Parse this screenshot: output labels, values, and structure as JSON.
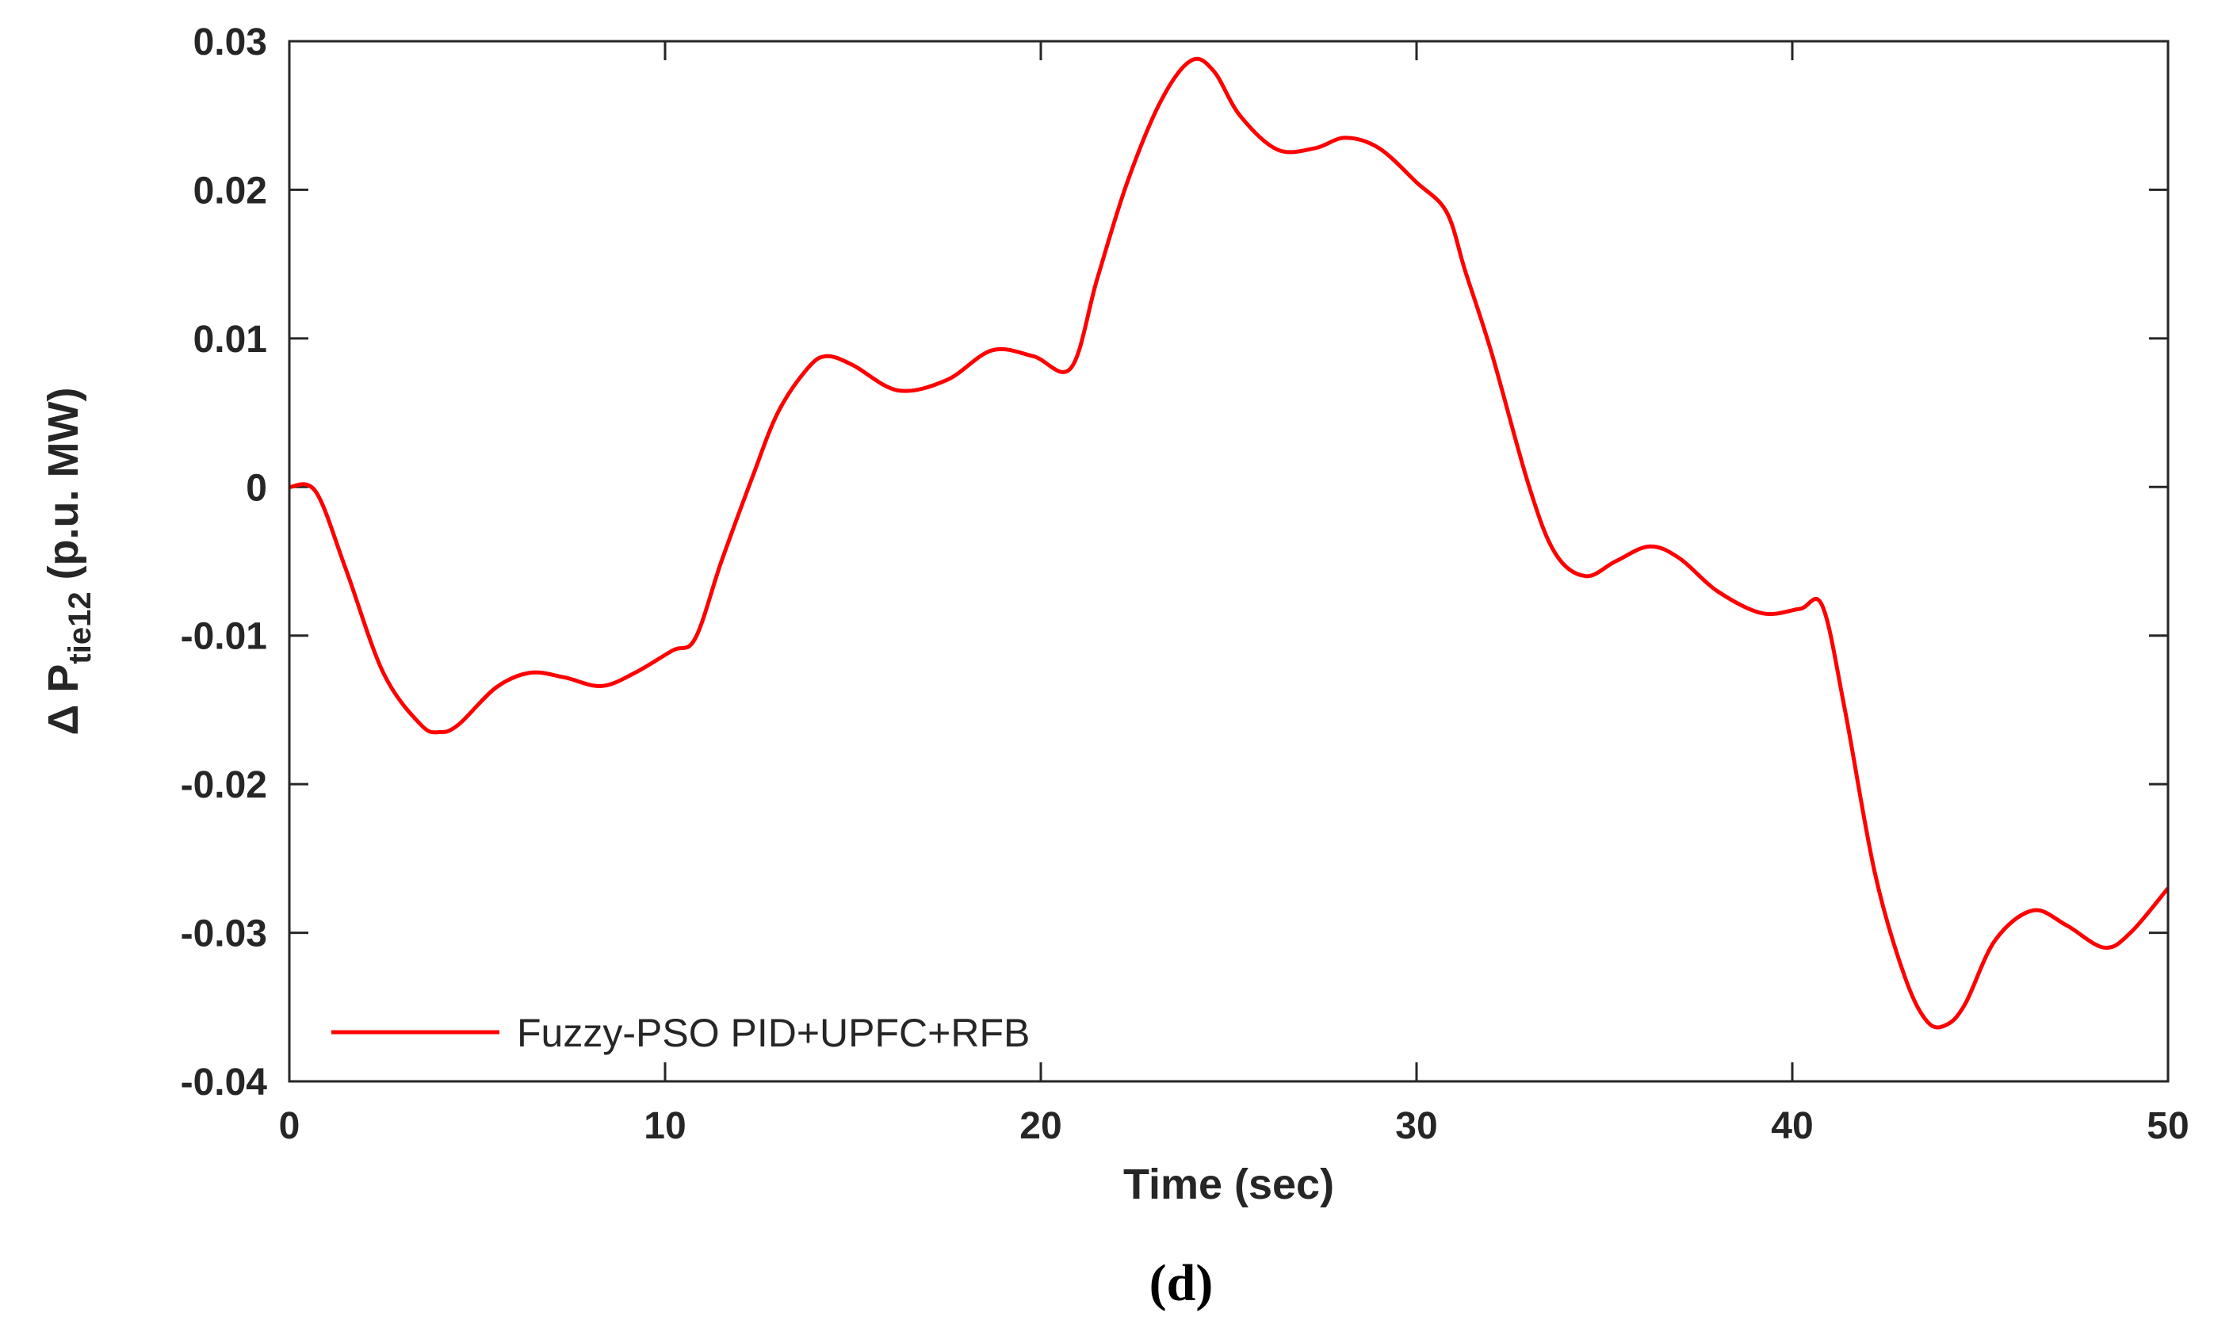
{
  "chart_data": {
    "type": "line",
    "xlabel": "Time (sec)",
    "ylabel": {
      "prefix": "Δ P",
      "subscript": "tie12",
      "suffix": " (p.u. MW)"
    },
    "xlim": [
      0,
      50
    ],
    "ylim": [
      -0.04,
      0.03
    ],
    "xticks": [
      0,
      10,
      20,
      30,
      40,
      50
    ],
    "yticks": [
      -0.04,
      -0.03,
      -0.02,
      -0.01,
      0,
      0.01,
      0.02,
      0.03
    ],
    "xtick_labels": [
      "0",
      "10",
      "20",
      "30",
      "40",
      "50"
    ],
    "ytick_labels": [
      "-0.04",
      "-0.03",
      "-0.02",
      "-0.01",
      "0",
      "0.01",
      "0.02",
      "0.03"
    ],
    "grid": false,
    "legend_position": "bottom-left",
    "series": [
      {
        "name": "Fuzzy-PSO PID+UPFC+RFB",
        "color": "#ff0000",
        "x": [
          0,
          0.7,
          1.5,
          2.5,
          3.5,
          4.0,
          4.5,
          5.5,
          6.4,
          7.3,
          8.3,
          9.2,
          10.2,
          10.8,
          11.5,
          12.3,
          13.0,
          13.8,
          14.3,
          15.0,
          16.2,
          17.5,
          18.7,
          19.8,
          20.8,
          21.5,
          22.3,
          23.2,
          24.0,
          24.6,
          25.3,
          26.3,
          27.3,
          28.1,
          29.0,
          30.0,
          30.8,
          31.3,
          32.0,
          33.0,
          33.7,
          34.5,
          35.3,
          36.2,
          37.0,
          38.0,
          39.2,
          40.2,
          40.8,
          41.4,
          42.2,
          43.0,
          43.6,
          44.1,
          44.6,
          45.4,
          46.4,
          47.3,
          48.3,
          49.0,
          50.0
        ],
        "y": [
          0,
          -0.0003,
          -0.0055,
          -0.0125,
          -0.016,
          -0.0165,
          -0.016,
          -0.0135,
          -0.0125,
          -0.0128,
          -0.0134,
          -0.0125,
          -0.011,
          -0.0102,
          -0.005,
          0.0005,
          0.005,
          0.008,
          0.0088,
          0.0082,
          0.0065,
          0.0072,
          0.0092,
          0.0088,
          0.008,
          0.014,
          0.0205,
          0.026,
          0.0287,
          0.028,
          0.025,
          0.0227,
          0.0228,
          0.0235,
          0.0228,
          0.0205,
          0.0185,
          0.0145,
          0.009,
          0.0,
          -0.0045,
          -0.006,
          -0.005,
          -0.004,
          -0.0048,
          -0.007,
          -0.0085,
          -0.0082,
          -0.008,
          -0.015,
          -0.026,
          -0.033,
          -0.036,
          -0.0362,
          -0.0348,
          -0.0305,
          -0.0285,
          -0.0295,
          -0.031,
          -0.03,
          -0.027
        ]
      }
    ]
  },
  "caption": "(d)"
}
